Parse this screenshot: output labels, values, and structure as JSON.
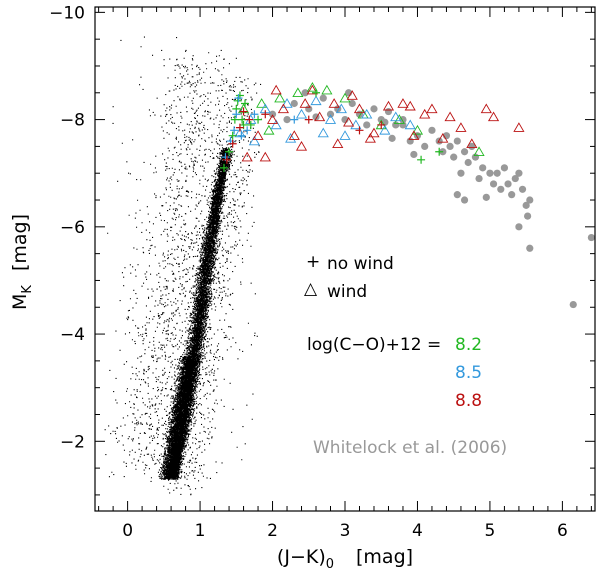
{
  "chart_data": {
    "type": "scatter",
    "title": "",
    "xlabel": "(J−K)",
    "xlabel_sub": "0",
    "xlabel_unit": "[mag]",
    "ylabel": "M",
    "ylabel_sub": "K",
    "ylabel_unit": "[mag]",
    "xlim": [
      -0.45,
      6.45
    ],
    "ylim": [
      -0.7,
      -10.1
    ],
    "y_inverted": true,
    "x_ticks": [
      0,
      1,
      2,
      3,
      4,
      5,
      6
    ],
    "x_tick_labels": [
      "0",
      "1",
      "2",
      "3",
      "4",
      "5",
      "6"
    ],
    "y_ticks": [
      -2,
      -4,
      -6,
      -8,
      -10
    ],
    "y_tick_labels": [
      "−2",
      "−4",
      "−6",
      "−8",
      "−10"
    ],
    "legend": {
      "placement": "center-right",
      "no_wind": {
        "marker": "+",
        "label": "no wind"
      },
      "wind": {
        "marker": "△",
        "label": "wind"
      }
    },
    "metallicity": {
      "label": "log(C−O)+12 =",
      "levels": [
        {
          "value": "8.2",
          "color": "#22b822"
        },
        {
          "value": "8.5",
          "color": "#3399dd"
        },
        {
          "value": "8.8",
          "color": "#bb1111"
        }
      ]
    },
    "reference": {
      "label": "Whitelock et al. (2006)",
      "color": "#999999"
    },
    "series": [
      {
        "name": "Whitelock et al. (2006)",
        "marker": "filled-circle",
        "color": "#999999",
        "points": [
          [
            2.0,
            -8.1
          ],
          [
            2.2,
            -8.0
          ],
          [
            2.3,
            -8.3
          ],
          [
            2.5,
            -8.2
          ],
          [
            2.6,
            -8.05
          ],
          [
            2.7,
            -8.4
          ],
          [
            2.8,
            -8.1
          ],
          [
            2.9,
            -8.2
          ],
          [
            3.0,
            -8.0
          ],
          [
            3.1,
            -8.3
          ],
          [
            3.2,
            -8.1
          ],
          [
            3.3,
            -7.9
          ],
          [
            3.4,
            -8.2
          ],
          [
            3.5,
            -8.0
          ],
          [
            3.55,
            -7.95
          ],
          [
            3.6,
            -8.15
          ],
          [
            3.7,
            -7.9
          ],
          [
            3.8,
            -8.0
          ],
          [
            3.9,
            -7.6
          ],
          [
            4.0,
            -7.7
          ],
          [
            4.1,
            -7.5
          ],
          [
            4.2,
            -7.8
          ],
          [
            4.3,
            -7.6
          ],
          [
            4.35,
            -7.4
          ],
          [
            4.4,
            -7.7
          ],
          [
            4.45,
            -7.5
          ],
          [
            4.5,
            -7.3
          ],
          [
            4.55,
            -7.6
          ],
          [
            4.6,
            -7.0
          ],
          [
            4.65,
            -7.4
          ],
          [
            4.7,
            -7.2
          ],
          [
            4.75,
            -7.5
          ],
          [
            4.8,
            -7.3
          ],
          [
            4.85,
            -6.9
          ],
          [
            4.9,
            -7.1
          ],
          [
            5.0,
            -7.0
          ],
          [
            5.05,
            -6.8
          ],
          [
            5.1,
            -7.0
          ],
          [
            5.15,
            -6.7
          ],
          [
            5.2,
            -7.1
          ],
          [
            5.25,
            -6.8
          ],
          [
            5.3,
            -6.6
          ],
          [
            5.35,
            -6.9
          ],
          [
            5.4,
            -7.0
          ],
          [
            5.45,
            -6.7
          ],
          [
            5.5,
            -6.4
          ],
          [
            5.52,
            -6.2
          ],
          [
            5.55,
            -6.5
          ],
          [
            5.4,
            -6.0
          ],
          [
            5.55,
            -5.6
          ],
          [
            4.55,
            -6.6
          ],
          [
            4.65,
            -6.5
          ],
          [
            4.95,
            -6.55
          ],
          [
            3.95,
            -7.35
          ],
          [
            3.8,
            -7.9
          ],
          [
            3.65,
            -7.65
          ],
          [
            6.15,
            -4.55
          ],
          [
            6.4,
            -5.8
          ],
          [
            2.45,
            -8.5
          ],
          [
            3.05,
            -8.5
          ]
        ]
      },
      {
        "name": "no wind, 8.2",
        "marker": "+",
        "color": "#22b822",
        "points": [
          [
            1.33,
            -7.1
          ],
          [
            1.4,
            -7.4
          ],
          [
            1.45,
            -7.7
          ],
          [
            1.48,
            -8.0
          ],
          [
            1.5,
            -8.2
          ],
          [
            1.52,
            -8.35
          ],
          [
            1.55,
            -8.45
          ],
          [
            1.58,
            -8.0
          ],
          [
            1.6,
            -7.9
          ],
          [
            1.62,
            -8.3
          ],
          [
            1.7,
            -7.9
          ],
          [
            1.8,
            -8.0
          ],
          [
            2.6,
            -8.5
          ],
          [
            4.05,
            -7.25
          ],
          [
            4.3,
            -7.4
          ]
        ]
      },
      {
        "name": "no wind, 8.5",
        "marker": "+",
        "color": "#3399dd",
        "points": [
          [
            1.35,
            -7.3
          ],
          [
            1.42,
            -7.6
          ],
          [
            1.47,
            -7.8
          ],
          [
            1.5,
            -8.1
          ],
          [
            1.53,
            -8.4
          ],
          [
            1.57,
            -7.7
          ],
          [
            1.65,
            -7.8
          ],
          [
            1.75,
            -8.1
          ],
          [
            2.3,
            -8.0
          ]
        ]
      },
      {
        "name": "no wind, 8.8",
        "marker": "+",
        "color": "#bb1111",
        "points": [
          [
            1.37,
            -7.25
          ],
          [
            1.45,
            -7.55
          ],
          [
            1.55,
            -7.85
          ],
          [
            1.6,
            -8.15
          ],
          [
            1.68,
            -8.0
          ],
          [
            1.9,
            -8.1
          ],
          [
            2.5,
            -8.0
          ],
          [
            3.5,
            -7.9
          ],
          [
            3.2,
            -7.8
          ]
        ]
      },
      {
        "name": "wind, 8.2",
        "marker": "triangle",
        "color": "#22b822",
        "points": [
          [
            1.6,
            -8.2
          ],
          [
            1.85,
            -8.3
          ],
          [
            1.95,
            -7.8
          ],
          [
            2.1,
            -8.4
          ],
          [
            2.35,
            -8.5
          ],
          [
            2.55,
            -8.6
          ],
          [
            2.75,
            -8.55
          ],
          [
            3.0,
            -8.4
          ],
          [
            3.25,
            -8.1
          ],
          [
            3.5,
            -7.9
          ],
          [
            3.75,
            -8.0
          ],
          [
            4.0,
            -7.8
          ],
          [
            4.85,
            -7.4
          ]
        ]
      },
      {
        "name": "wind, 8.5",
        "marker": "triangle",
        "color": "#3399dd",
        "points": [
          [
            1.55,
            -7.75
          ],
          [
            1.7,
            -8.0
          ],
          [
            1.9,
            -8.2
          ],
          [
            2.05,
            -7.9
          ],
          [
            2.2,
            -8.3
          ],
          [
            2.4,
            -8.1
          ],
          [
            2.6,
            -8.35
          ],
          [
            2.8,
            -8.0
          ],
          [
            2.95,
            -8.2
          ],
          [
            3.15,
            -7.9
          ],
          [
            3.3,
            -8.1
          ],
          [
            3.55,
            -7.8
          ],
          [
            3.7,
            -8.05
          ],
          [
            3.9,
            -7.9
          ],
          [
            2.25,
            -7.65
          ],
          [
            2.7,
            -7.75
          ],
          [
            1.75,
            -7.6
          ],
          [
            3.0,
            -7.7
          ]
        ]
      },
      {
        "name": "wind, 8.8",
        "marker": "triangle",
        "color": "#bb1111",
        "points": [
          [
            1.65,
            -7.3
          ],
          [
            1.8,
            -7.7
          ],
          [
            2.0,
            -8.0
          ],
          [
            2.15,
            -8.2
          ],
          [
            2.3,
            -7.7
          ],
          [
            2.45,
            -8.3
          ],
          [
            2.65,
            -8.05
          ],
          [
            2.85,
            -8.3
          ],
          [
            3.05,
            -7.95
          ],
          [
            3.2,
            -8.2
          ],
          [
            3.4,
            -7.75
          ],
          [
            3.6,
            -8.25
          ],
          [
            3.8,
            -8.3
          ],
          [
            3.95,
            -7.7
          ],
          [
            4.1,
            -8.1
          ],
          [
            4.2,
            -8.2
          ],
          [
            4.35,
            -7.65
          ],
          [
            4.45,
            -8.05
          ],
          [
            4.6,
            -7.85
          ],
          [
            4.75,
            -7.55
          ],
          [
            4.95,
            -8.2
          ],
          [
            5.05,
            -8.05
          ],
          [
            5.4,
            -7.85
          ],
          [
            1.9,
            -7.3
          ],
          [
            2.4,
            -7.5
          ],
          [
            2.9,
            -7.55
          ],
          [
            3.35,
            -7.65
          ],
          [
            2.05,
            -8.55
          ],
          [
            2.55,
            -8.55
          ],
          [
            3.1,
            -8.45
          ],
          [
            3.9,
            -8.25
          ]
        ]
      },
      {
        "name": "field stars",
        "marker": "dot",
        "color": "#000000",
        "description_ref": "dense black point cloud",
        "ridge": [
          [
            0.62,
            -1.4
          ],
          [
            0.7,
            -2.0
          ],
          [
            0.78,
            -2.6
          ],
          [
            0.86,
            -3.2
          ],
          [
            0.93,
            -3.8
          ],
          [
            1.0,
            -4.4
          ],
          [
            1.06,
            -5.0
          ],
          [
            1.12,
            -5.6
          ],
          [
            1.18,
            -6.1
          ],
          [
            1.24,
            -6.6
          ],
          [
            1.3,
            -7.0
          ],
          [
            1.35,
            -7.3
          ]
        ]
      }
    ]
  }
}
